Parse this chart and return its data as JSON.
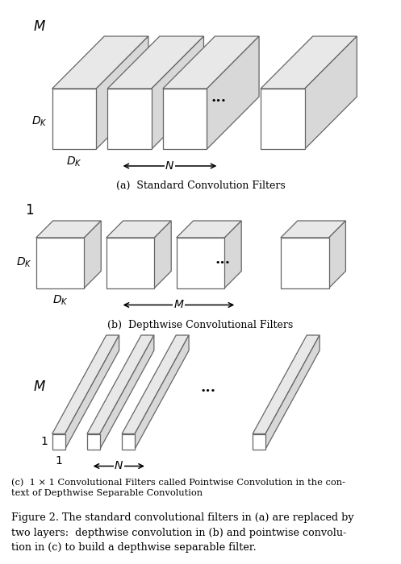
{
  "fig_width": 4.97,
  "fig_height": 7.0,
  "bg_color": "#ffffff",
  "box_face_color": "#ffffff",
  "top_face_color": "#e8e8e8",
  "right_face_color": "#d8d8d8",
  "edge_color": "#666666",
  "text_color": "#000000",
  "caption_a": "(a)  Standard Convolution Filters",
  "caption_b": "(b)  Depthwise Convolutional Filters",
  "caption_c": "(c)  1 × 1 Convolutional Filters called Pointwise Convolution in the con-\ntext of Depthwise Separable Convolution",
  "figure_caption": "Figure 2. The standard convolutional filters in (a) are replaced by\ntwo layers:  depthwise convolution in (b) and pointwise convolu-\ntion in (c) to build a depthwise separable filter."
}
